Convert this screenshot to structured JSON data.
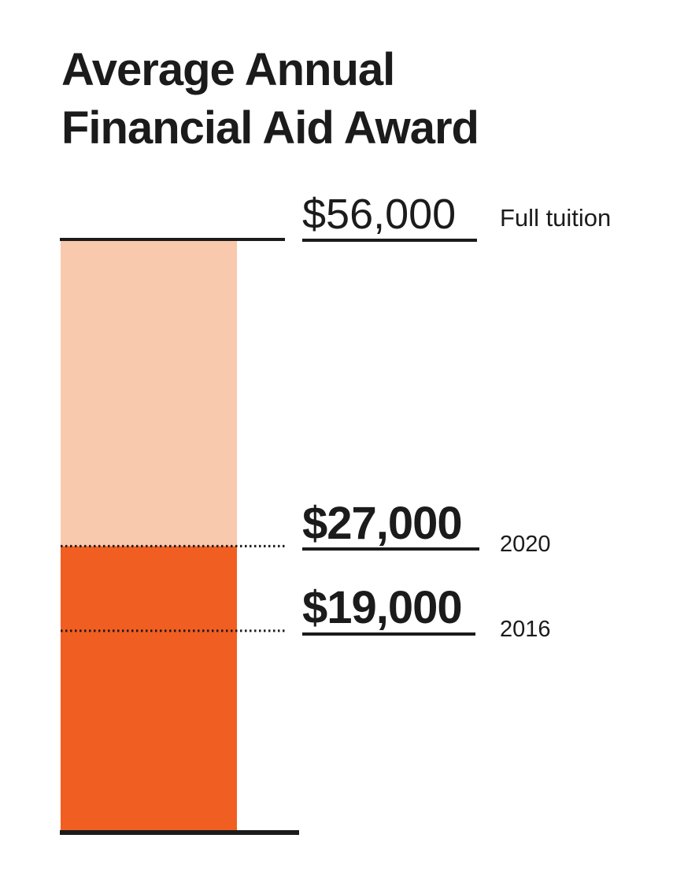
{
  "title_lines": [
    "Average Annual",
    "Financial Aid Award"
  ],
  "chart_data": {
    "type": "bar",
    "title": "Average Annual Financial Aid Award",
    "markers": [
      {
        "value": 56000,
        "label": "$56,000",
        "note": "Full tuition",
        "style": "light"
      },
      {
        "value": 27000,
        "label": "$27,000",
        "note": "2020",
        "style": "bold"
      },
      {
        "value": 19000,
        "label": "$19,000",
        "note": "2016",
        "style": "bold"
      }
    ],
    "segments": [
      {
        "from": 0,
        "to": 27000,
        "color": "#f15e22"
      },
      {
        "from": 27000,
        "to": 56000,
        "color": "#f9c9ad"
      }
    ],
    "ylim": [
      0,
      56000
    ],
    "grid": false
  },
  "colors": {
    "ink": "#1b1b1b",
    "accent": "#f15e22",
    "accent_light": "#f9c9ad"
  }
}
